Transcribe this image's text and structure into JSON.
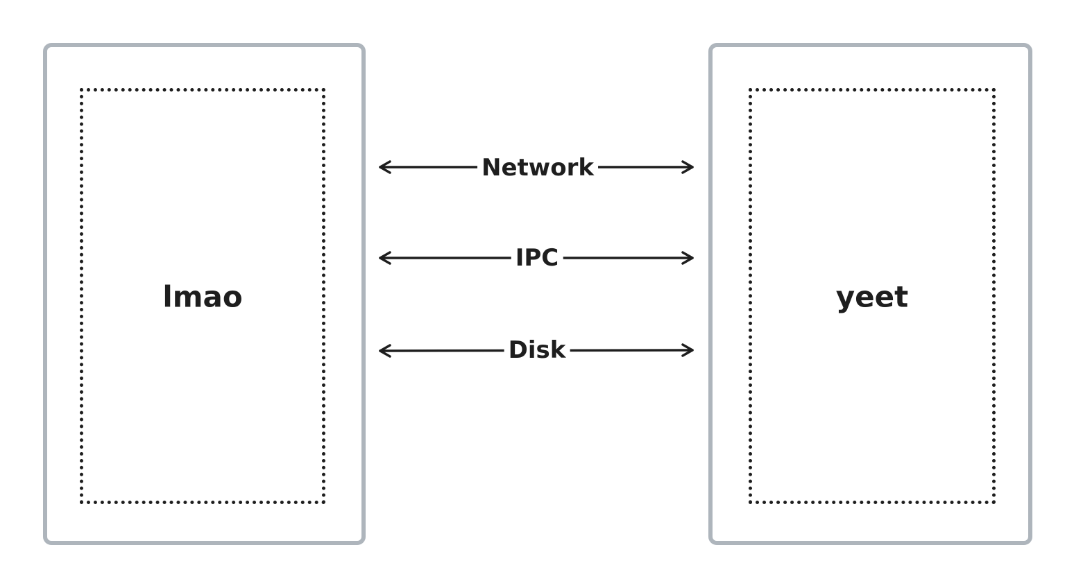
{
  "diagram": {
    "nodes": [
      {
        "id": "left",
        "label": "lmao"
      },
      {
        "id": "right",
        "label": "yeet"
      }
    ],
    "edges": [
      {
        "label": "Network",
        "from": "left",
        "to": "right",
        "bidirectional": true
      },
      {
        "label": "IPC",
        "from": "left",
        "to": "right",
        "bidirectional": true
      },
      {
        "label": "Disk",
        "from": "left",
        "to": "right",
        "bidirectional": true
      }
    ],
    "colors": {
      "outer_border": "#aeb5bc",
      "stroke": "#1e1e1e",
      "background": "#ffffff"
    }
  }
}
